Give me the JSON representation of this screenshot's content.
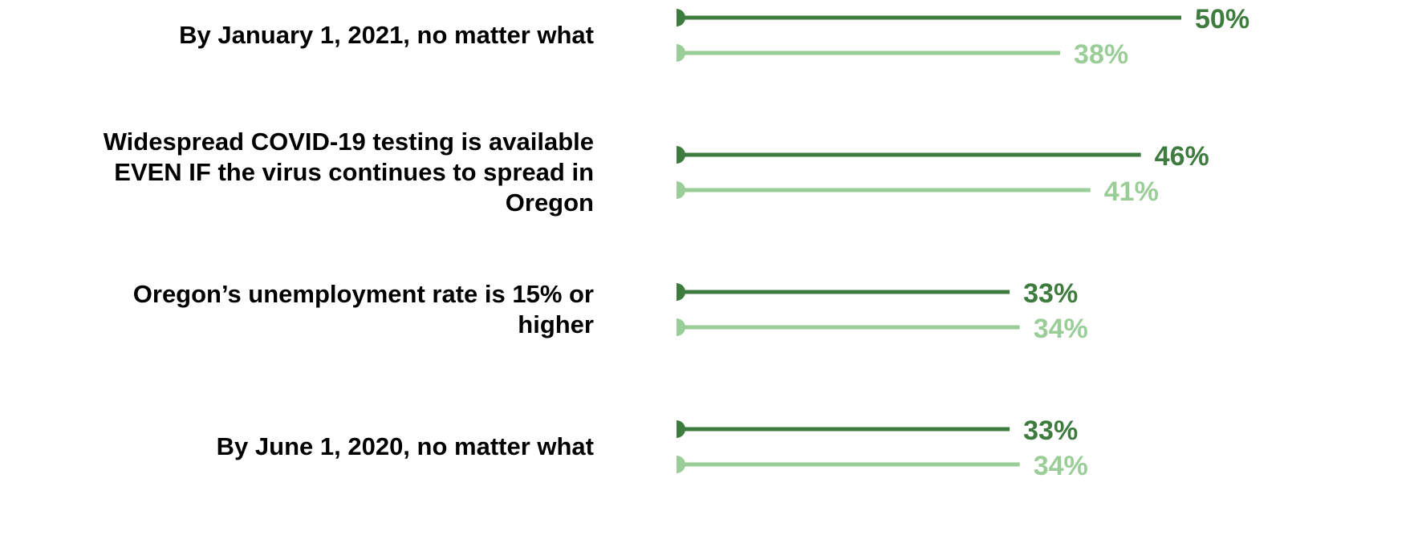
{
  "chart_data": {
    "type": "lollipop",
    "categories": [
      "By January 1, 2021, no matter what",
      "Widespread COVID-19 testing is available EVEN IF the virus continues to spread in Oregon",
      "Oregon’s unemployment rate is 15% or higher",
      "By June 1, 2020, no matter what"
    ],
    "series": [
      {
        "color": "#3e7b3e",
        "values": [
          50,
          46,
          33,
          33
        ],
        "value_labels": [
          "50%",
          "46%",
          "33%",
          "33%"
        ]
      },
      {
        "color": "#9acd98",
        "values": [
          38,
          41,
          34,
          34
        ],
        "value_labels": [
          "38%",
          "41%",
          "34%",
          "34%"
        ]
      }
    ]
  }
}
